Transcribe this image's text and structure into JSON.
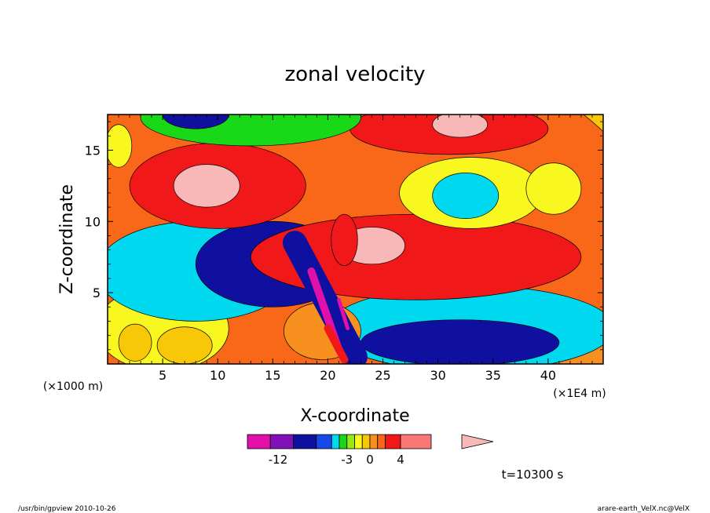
{
  "chart_data": {
    "type": "heatmap",
    "title": "zonal velocity",
    "xlabel": "X-coordinate",
    "ylabel": "Z-coordinate",
    "x_unit_left": "(×1000 m)",
    "x_unit_right": "(×1E4 m)",
    "xlim": [
      0,
      45
    ],
    "ylim": [
      0,
      17.5
    ],
    "xticks": [
      5,
      10,
      15,
      20,
      25,
      30,
      35,
      40
    ],
    "yticks": [
      5,
      10,
      15
    ],
    "time_label": "t=10300 s",
    "colorbar": {
      "colors": [
        "#e010a8",
        "#8010b8",
        "#1010a0",
        "#1848e8",
        "#00d8f0",
        "#18d818",
        "#98e818",
        "#f8f820",
        "#f8c808",
        "#f89020",
        "#f86818",
        "#f01818",
        "#f87878",
        "#f8b8b8"
      ],
      "tick_labels": [
        "-12",
        "-3",
        "0",
        "4"
      ],
      "tick_positions": [
        -12,
        -3,
        0,
        4
      ],
      "range": [
        -16,
        12
      ]
    },
    "field_regions": [
      {
        "type": "ellipse",
        "cx": 20,
        "cy": 8,
        "rx": 30,
        "ry": 15,
        "value": 1
      },
      {
        "type": "ellipse",
        "cx": 38,
        "cy": 0,
        "rx": 10,
        "ry": 3,
        "value": 0
      },
      {
        "type": "ellipse",
        "cx": 5,
        "cy": 2.5,
        "rx": 6,
        "ry": 3,
        "value": -2
      },
      {
        "type": "ellipse",
        "cx": 8,
        "cy": 6.5,
        "rx": 9,
        "ry": 3.5,
        "value": -5
      },
      {
        "type": "ellipse",
        "cx": 15,
        "cy": 7,
        "rx": 7,
        "ry": 3,
        "value": -7
      },
      {
        "type": "ellipse",
        "cx": 33,
        "cy": 2.5,
        "rx": 13,
        "ry": 3,
        "value": -5
      },
      {
        "type": "ellipse",
        "cx": 32,
        "cy": 1.5,
        "rx": 9,
        "ry": 1.6,
        "value": -7
      },
      {
        "type": "ellipse",
        "cx": 10,
        "cy": 12.5,
        "rx": 8,
        "ry": 3,
        "value": 2
      },
      {
        "type": "ellipse",
        "cx": 9,
        "cy": 12.5,
        "rx": 3,
        "ry": 1.5,
        "value": 4
      },
      {
        "type": "ellipse",
        "cx": 28,
        "cy": 7.5,
        "rx": 15,
        "ry": 3,
        "value": 2
      },
      {
        "type": "ellipse",
        "cx": 24,
        "cy": 8.3,
        "rx": 3,
        "ry": 1.3,
        "value": 4
      },
      {
        "type": "ellipse",
        "cx": 31,
        "cy": 16.5,
        "rx": 9,
        "ry": 1.8,
        "value": 2
      },
      {
        "type": "ellipse",
        "cx": 32,
        "cy": 16.8,
        "rx": 2.5,
        "ry": 0.9,
        "value": 4
      },
      {
        "type": "ellipse",
        "cx": 33,
        "cy": 12,
        "rx": 6.5,
        "ry": 2.5,
        "value": -2
      },
      {
        "type": "ellipse",
        "cx": 32.5,
        "cy": 11.8,
        "rx": 3,
        "ry": 1.6,
        "value": -5
      },
      {
        "type": "ellipse",
        "cx": 40.5,
        "cy": 12.3,
        "rx": 2.5,
        "ry": 1.8,
        "value": -2
      },
      {
        "type": "ellipse",
        "cx": 13,
        "cy": 17.3,
        "rx": 10,
        "ry": 2,
        "value": -4
      },
      {
        "type": "ellipse",
        "cx": 8,
        "cy": 17.5,
        "rx": 3,
        "ry": 1,
        "value": -7
      },
      {
        "type": "ellipse",
        "cx": 1,
        "cy": 15.3,
        "rx": 1.2,
        "ry": 1.5,
        "value": -2
      },
      {
        "type": "ellipse",
        "cx": 19.5,
        "cy": 2.3,
        "rx": 3.5,
        "ry": 2,
        "value": 0
      },
      {
        "type": "ellipse",
        "cx": 7,
        "cy": 1.3,
        "rx": 2.5,
        "ry": 1.3,
        "value": -1
      },
      {
        "type": "ellipse",
        "cx": 2.5,
        "cy": 1.5,
        "rx": 1.5,
        "ry": 1.3,
        "value": -1
      },
      {
        "type": "ellipse",
        "cx": 21.5,
        "cy": 8.7,
        "rx": 1.2,
        "ry": 1.8,
        "value": 2
      },
      {
        "type": "line",
        "x1": 17,
        "y1": 8.5,
        "x2": 22.5,
        "y2": 0.5,
        "w": 2.2,
        "value": -7
      },
      {
        "type": "line",
        "x1": 18.5,
        "y1": 6.5,
        "x2": 21,
        "y2": 1,
        "w": 0.7,
        "value": -10
      },
      {
        "type": "line",
        "x1": 21,
        "y1": 4.5,
        "x2": 21.8,
        "y2": 2.5,
        "w": 0.35,
        "value": -12
      },
      {
        "type": "line",
        "x1": 20,
        "y1": 2.5,
        "x2": 21.5,
        "y2": 0.3,
        "w": 0.7,
        "value": 2
      }
    ]
  },
  "footer": {
    "left": "/usr/bin/gpview   2010-10-26",
    "right": "arare-earth_VelX.nc@VelX"
  }
}
